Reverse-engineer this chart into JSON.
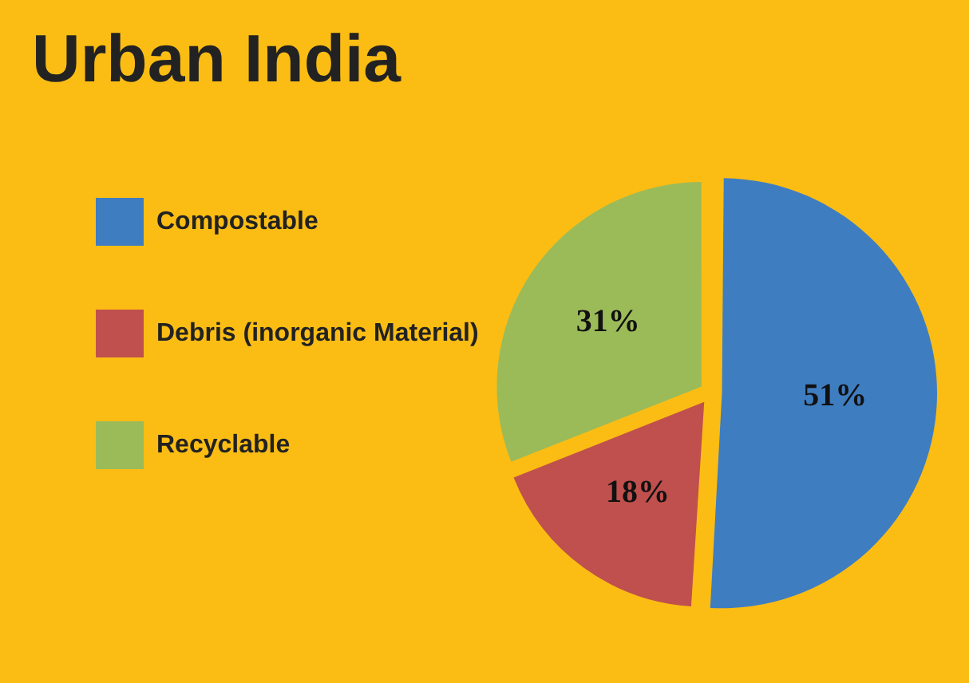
{
  "chart_data": {
    "type": "pie",
    "title": "Urban India",
    "categories": [
      "Compostable",
      "Debris (inorganic Material)",
      "Recyclable"
    ],
    "values": [
      51,
      18,
      31
    ],
    "colors": [
      "#3f7dc1",
      "#c0504d",
      "#9bbb59"
    ],
    "value_labels": [
      "51%",
      "18%",
      "31%"
    ],
    "legend": "left"
  }
}
